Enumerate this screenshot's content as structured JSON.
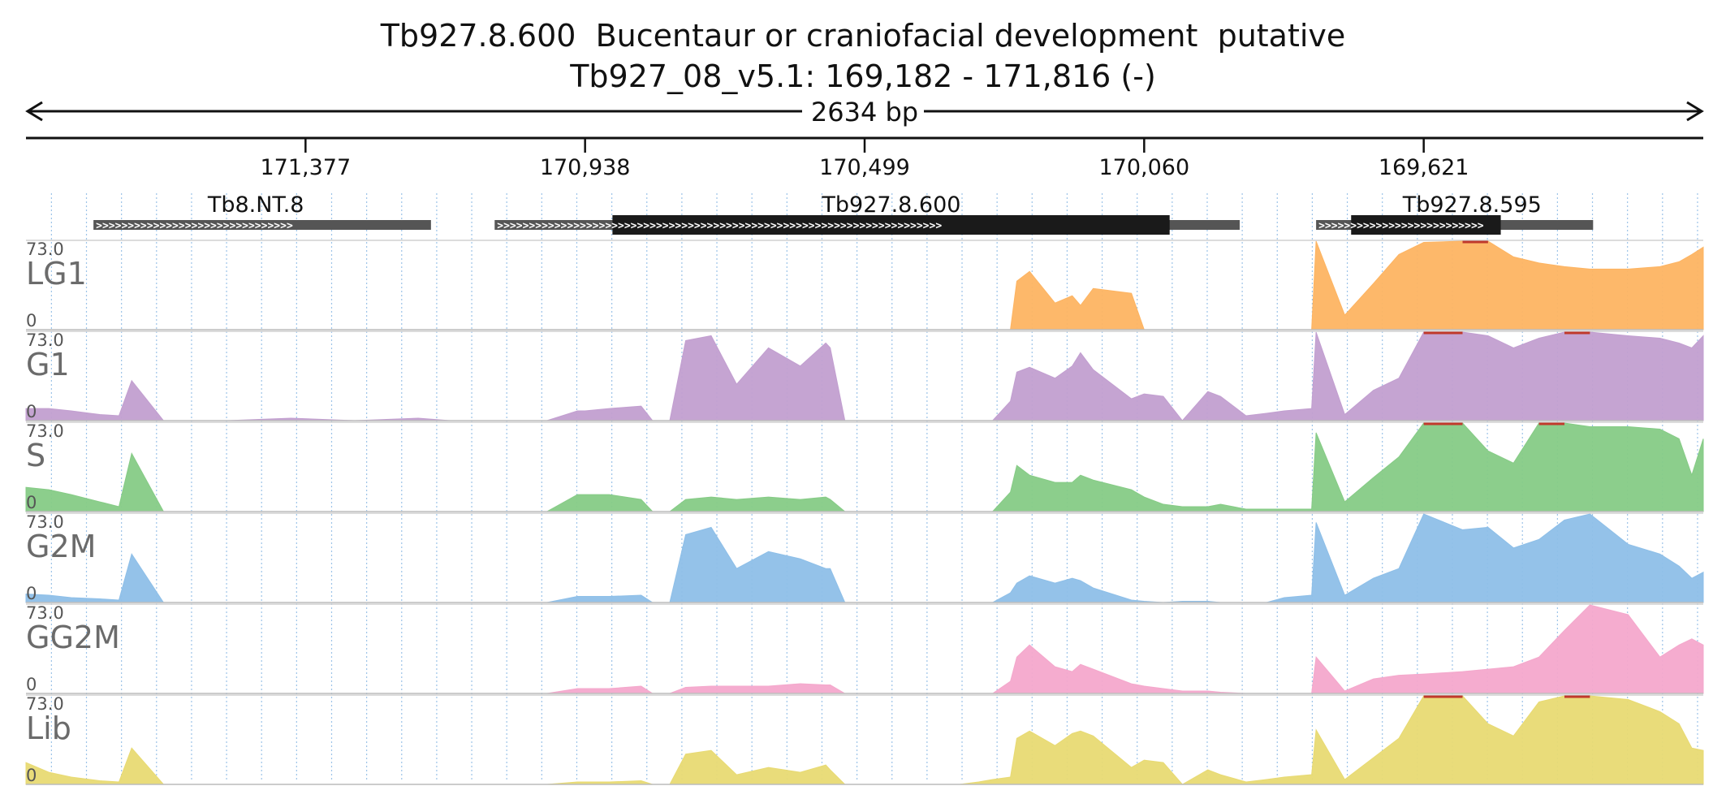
{
  "title": "Tb927.8.600  Bucentaur or craniofacial development  putative",
  "subtitle": "Tb927_08_v5.1: 169,182 - 171,816 (-)",
  "chart_data": {
    "type": "area",
    "region": {
      "chrom": "Tb927_08_v5.1",
      "start": 169182,
      "end": 171816,
      "strand": "-"
    },
    "span_label": "2634 bp",
    "ticks": [
      {
        "pos": 171377,
        "label": "171,377"
      },
      {
        "pos": 170938,
        "label": "170,938"
      },
      {
        "pos": 170499,
        "label": "170,499"
      },
      {
        "pos": 170060,
        "label": "170,060"
      },
      {
        "pos": 169621,
        "label": "169,621"
      }
    ],
    "genes": [
      {
        "name": "Tb8.NT.8",
        "start": 171710,
        "end": 171180,
        "cds_start": null,
        "cds_end": null,
        "label_pos": 171455
      },
      {
        "name": "Tb927.8.600",
        "start": 171080,
        "end": 169910,
        "cds_start": 170895,
        "cds_end": 170020,
        "label_pos": 170457
      },
      {
        "name": "Tb927.8.595",
        "start": 169790,
        "end": 169355,
        "cds_start": 169735,
        "cds_end": 169500,
        "label_pos": 169545
      }
    ],
    "ylim": [
      0,
      73.0
    ],
    "y_max_label": "73.0",
    "y_min_label": "0",
    "x": [
      171816,
      171780,
      171745,
      171700,
      171670,
      171650,
      171600,
      171500,
      171400,
      171300,
      171200,
      171150,
      171100,
      171020,
      170998,
      170950,
      170938,
      170900,
      170850,
      170832,
      170805,
      170780,
      170740,
      170700,
      170650,
      170600,
      170560,
      170553,
      170530,
      170480,
      170420,
      170350,
      170320,
      170298,
      170270,
      170260,
      170240,
      170200,
      170173,
      170160,
      170140,
      170080,
      170060,
      170030,
      170000,
      169960,
      169940,
      169900,
      169868,
      169840,
      169797,
      169790,
      169745,
      169700,
      169660,
      169621,
      169560,
      169520,
      169480,
      169440,
      169400,
      169360,
      169300,
      169250,
      169220,
      169200,
      169182
    ],
    "series": [
      {
        "name": "LG1",
        "color": "#fdb462",
        "values": [
          0,
          0,
          0,
          0,
          0,
          0,
          0,
          0,
          0,
          0,
          0,
          0,
          0,
          0,
          0,
          0,
          0,
          0,
          0,
          0,
          0,
          0,
          0,
          0,
          0,
          0,
          0,
          0,
          0,
          0,
          0,
          0,
          0,
          0,
          0,
          40,
          48,
          22,
          28,
          20,
          34,
          30,
          0,
          0,
          0,
          0,
          0,
          0,
          0,
          0,
          0,
          73,
          12,
          38,
          62,
          72,
          73,
          73,
          60,
          55,
          52,
          50,
          50,
          52,
          56,
          62,
          68
        ]
      },
      {
        "name": "G1",
        "color": "#c29fd0",
        "values": [
          10,
          10,
          8,
          5,
          4,
          33,
          0,
          0,
          2,
          0,
          2,
          0,
          0,
          0,
          0,
          8,
          8,
          10,
          12,
          0,
          0,
          66,
          70,
          30,
          60,
          45,
          64,
          60,
          0,
          0,
          0,
          0,
          0,
          0,
          16,
          40,
          44,
          35,
          45,
          56,
          42,
          18,
          22,
          20,
          0,
          24,
          20,
          4,
          6,
          8,
          10,
          73,
          5,
          25,
          35,
          73,
          73,
          70,
          60,
          68,
          73,
          73,
          70,
          68,
          64,
          60,
          70
        ]
      },
      {
        "name": "S",
        "color": "#86cb86",
        "values": [
          20,
          18,
          14,
          8,
          4,
          48,
          0,
          0,
          0,
          0,
          0,
          0,
          0,
          0,
          0,
          14,
          14,
          14,
          10,
          0,
          0,
          10,
          12,
          10,
          12,
          10,
          12,
          10,
          0,
          0,
          0,
          0,
          0,
          0,
          16,
          38,
          30,
          24,
          24,
          30,
          26,
          18,
          12,
          6,
          4,
          4,
          6,
          2,
          2,
          2,
          2,
          65,
          8,
          28,
          45,
          73,
          73,
          50,
          40,
          73,
          73,
          70,
          70,
          68,
          60,
          30,
          60
        ]
      },
      {
        "name": "G2M",
        "color": "#8ebfe8",
        "values": [
          7,
          6,
          4,
          3,
          2,
          40,
          0,
          0,
          0,
          0,
          0,
          0,
          0,
          0,
          0,
          5,
          5,
          5,
          6,
          0,
          0,
          56,
          62,
          28,
          42,
          36,
          28,
          28,
          0,
          0,
          0,
          0,
          0,
          0,
          8,
          16,
          22,
          16,
          20,
          18,
          12,
          2,
          1,
          0,
          1,
          1,
          0,
          0,
          0,
          4,
          6,
          66,
          6,
          20,
          28,
          73,
          60,
          62,
          45,
          52,
          68,
          73,
          48,
          40,
          30,
          20,
          25
        ]
      },
      {
        "name": "GG2M",
        "color": "#f4a8cc",
        "values": [
          0,
          0,
          0,
          0,
          0,
          0,
          0,
          0,
          0,
          0,
          0,
          0,
          0,
          0,
          0,
          4,
          4,
          4,
          6,
          0,
          0,
          5,
          6,
          6,
          6,
          8,
          7,
          7,
          0,
          0,
          0,
          0,
          0,
          0,
          10,
          30,
          40,
          22,
          18,
          24,
          20,
          8,
          6,
          4,
          2,
          2,
          1,
          0,
          0,
          0,
          0,
          30,
          2,
          12,
          15,
          16,
          18,
          20,
          22,
          30,
          52,
          73,
          65,
          30,
          40,
          45,
          40
        ]
      },
      {
        "name": "Lib",
        "color": "#e8da73",
        "values": [
          18,
          10,
          6,
          3,
          2,
          30,
          0,
          0,
          0,
          0,
          0,
          0,
          0,
          0,
          0,
          2,
          2,
          2,
          3,
          0,
          0,
          25,
          28,
          8,
          14,
          10,
          16,
          12,
          0,
          0,
          0,
          0,
          2,
          4,
          6,
          38,
          44,
          32,
          42,
          44,
          40,
          14,
          20,
          18,
          0,
          12,
          8,
          2,
          4,
          6,
          8,
          45,
          4,
          22,
          38,
          73,
          73,
          50,
          40,
          68,
          73,
          73,
          70,
          60,
          50,
          30,
          28
        ]
      }
    ]
  }
}
